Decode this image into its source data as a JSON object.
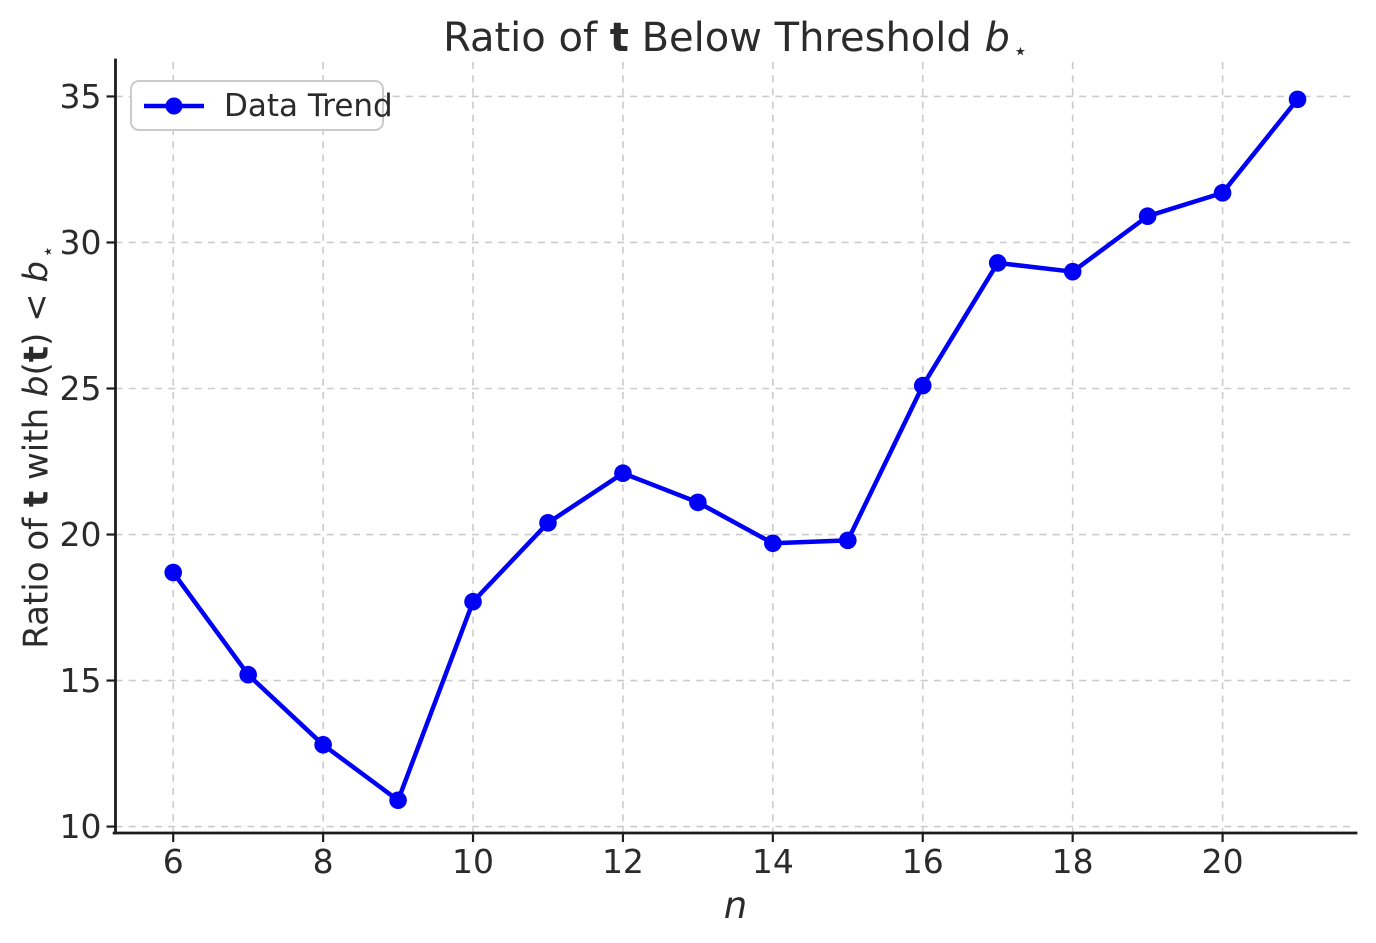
{
  "page": {
    "background": "#ffffff"
  },
  "chart_data": {
    "type": "line",
    "title_plain": "Ratio of t Below Threshold b⋆",
    "title_segments": [
      {
        "text": "Ratio of "
      },
      {
        "text": "t",
        "bold": true
      },
      {
        "text": " Below Threshold "
      },
      {
        "text": "b",
        "italic": true
      },
      {
        "text": "⋆",
        "sub": true
      }
    ],
    "xlabel": "n",
    "ylabel_plain": "Ratio of t with b(t) < b⋆",
    "ylabel_segments": [
      {
        "text": "Ratio of "
      },
      {
        "text": "t",
        "bold": true
      },
      {
        "text": " with "
      },
      {
        "text": "b",
        "italic": true
      },
      {
        "text": "("
      },
      {
        "text": "t",
        "bold": true
      },
      {
        "text": ")"
      },
      {
        "text": " < "
      },
      {
        "text": "b",
        "italic": true
      },
      {
        "text": "⋆",
        "sub": true
      }
    ],
    "legend": {
      "position": "upper left",
      "entries": [
        {
          "label": "Data Trend",
          "color": "#0000f5",
          "marker": "circle"
        }
      ]
    },
    "x": [
      6,
      7,
      8,
      9,
      10,
      11,
      12,
      13,
      14,
      15,
      16,
      17,
      18,
      19,
      20,
      21
    ],
    "series": [
      {
        "name": "Data Trend",
        "values": [
          18.7,
          15.2,
          12.8,
          10.9,
          17.7,
          20.4,
          22.1,
          21.1,
          19.7,
          19.8,
          25.1,
          29.3,
          29.0,
          30.9,
          31.7,
          34.9
        ],
        "color": "#0000f5",
        "marker": "circle"
      }
    ],
    "xticks": [
      6,
      8,
      10,
      12,
      14,
      16,
      18,
      20
    ],
    "yticks": [
      10,
      15,
      20,
      25,
      30,
      35
    ],
    "xlim": [
      5.23,
      21.78
    ],
    "ylim": [
      9.78,
      36.18
    ],
    "grid": true,
    "grid_color": "#cbcbcb",
    "grid_style": "dashed",
    "axis_color": "#1c1c1c",
    "text_color": "#2b2b2b"
  }
}
